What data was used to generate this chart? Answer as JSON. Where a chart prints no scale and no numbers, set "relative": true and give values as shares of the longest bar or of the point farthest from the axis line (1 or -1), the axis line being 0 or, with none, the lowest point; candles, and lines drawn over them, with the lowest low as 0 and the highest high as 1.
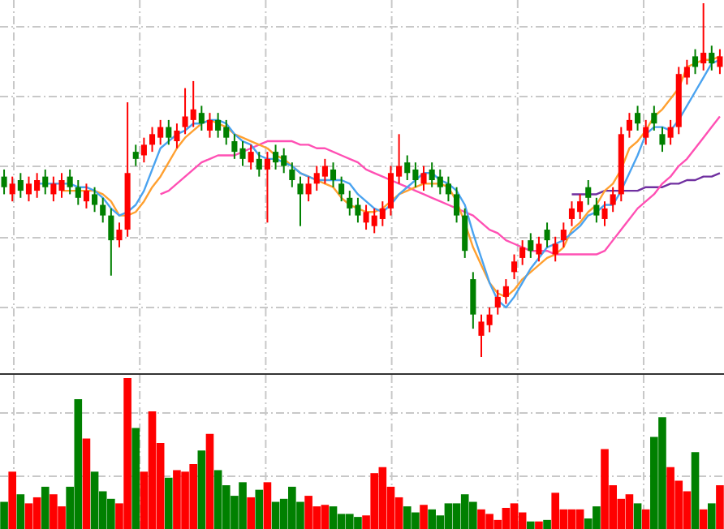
{
  "chart_data": [
    {
      "type": "candlestick",
      "relative": true,
      "grid": true,
      "categories": [
        null,
        null,
        null,
        null,
        null,
        null,
        null,
        null,
        null,
        null,
        null,
        null,
        null,
        null,
        null,
        null,
        null,
        null,
        null,
        null,
        null,
        null,
        null,
        null,
        null,
        null,
        null,
        null,
        null,
        null,
        null,
        null,
        null,
        null,
        null,
        null,
        null,
        null,
        null,
        null,
        null,
        null,
        null,
        null,
        null,
        null,
        null,
        null,
        null,
        null,
        null,
        null,
        null,
        null,
        null,
        null,
        null,
        null,
        null,
        null,
        null,
        null,
        null,
        null,
        null,
        null,
        null,
        null,
        null,
        null,
        null,
        null,
        null,
        null,
        null,
        null,
        null,
        null,
        null,
        null,
        null,
        null,
        null,
        null,
        null,
        null,
        null,
        null
      ],
      "ohlc": [
        [
          0.51,
          0.53,
          0.46,
          0.48
        ],
        [
          0.46,
          0.51,
          0.44,
          0.49
        ],
        [
          0.5,
          0.52,
          0.45,
          0.47
        ],
        [
          0.46,
          0.51,
          0.44,
          0.49
        ],
        [
          0.47,
          0.52,
          0.45,
          0.5
        ],
        [
          0.51,
          0.53,
          0.46,
          0.48
        ],
        [
          0.46,
          0.51,
          0.44,
          0.49
        ],
        [
          0.47,
          0.52,
          0.45,
          0.5
        ],
        [
          0.51,
          0.53,
          0.46,
          0.48
        ],
        [
          0.48,
          0.5,
          0.43,
          0.45
        ],
        [
          0.44,
          0.49,
          0.42,
          0.47
        ],
        [
          0.46,
          0.48,
          0.41,
          0.43
        ],
        [
          0.43,
          0.45,
          0.38,
          0.4
        ],
        [
          0.4,
          0.42,
          0.23,
          0.33
        ],
        [
          0.33,
          0.38,
          0.31,
          0.36
        ],
        [
          0.36,
          0.72,
          0.34,
          0.52
        ],
        [
          0.58,
          0.6,
          0.54,
          0.56
        ],
        [
          0.57,
          0.62,
          0.55,
          0.6
        ],
        [
          0.6,
          0.65,
          0.58,
          0.63
        ],
        [
          0.62,
          0.67,
          0.6,
          0.65
        ],
        [
          0.65,
          0.67,
          0.6,
          0.62
        ],
        [
          0.61,
          0.66,
          0.59,
          0.64
        ],
        [
          0.65,
          0.76,
          0.63,
          0.68
        ],
        [
          0.67,
          0.78,
          0.65,
          0.7
        ],
        [
          0.69,
          0.71,
          0.64,
          0.66
        ],
        [
          0.64,
          0.69,
          0.62,
          0.67
        ],
        [
          0.67,
          0.69,
          0.62,
          0.64
        ],
        [
          0.65,
          0.67,
          0.6,
          0.62
        ],
        [
          0.61,
          0.63,
          0.56,
          0.58
        ],
        [
          0.59,
          0.61,
          0.54,
          0.56
        ],
        [
          0.55,
          0.6,
          0.53,
          0.58
        ],
        [
          0.56,
          0.58,
          0.51,
          0.53
        ],
        [
          0.53,
          0.58,
          0.38,
          0.56
        ],
        [
          0.58,
          0.6,
          0.53,
          0.55
        ],
        [
          0.57,
          0.59,
          0.52,
          0.54
        ],
        [
          0.53,
          0.55,
          0.48,
          0.5
        ],
        [
          0.49,
          0.51,
          0.37,
          0.46
        ],
        [
          0.46,
          0.51,
          0.44,
          0.49
        ],
        [
          0.49,
          0.54,
          0.47,
          0.52
        ],
        [
          0.51,
          0.56,
          0.49,
          0.54
        ],
        [
          0.53,
          0.55,
          0.48,
          0.5
        ],
        [
          0.49,
          0.51,
          0.44,
          0.46
        ],
        [
          0.45,
          0.47,
          0.4,
          0.42
        ],
        [
          0.43,
          0.45,
          0.38,
          0.4
        ],
        [
          0.38,
          0.43,
          0.36,
          0.41
        ],
        [
          0.37,
          0.42,
          0.35,
          0.4
        ],
        [
          0.39,
          0.44,
          0.37,
          0.42
        ],
        [
          0.42,
          0.54,
          0.4,
          0.52
        ],
        [
          0.51,
          0.63,
          0.49,
          0.54
        ],
        [
          0.55,
          0.57,
          0.5,
          0.52
        ],
        [
          0.53,
          0.55,
          0.48,
          0.5
        ],
        [
          0.49,
          0.54,
          0.47,
          0.52
        ],
        [
          0.53,
          0.55,
          0.48,
          0.5
        ],
        [
          0.51,
          0.53,
          0.46,
          0.48
        ],
        [
          0.49,
          0.51,
          0.44,
          0.46
        ],
        [
          0.46,
          0.48,
          0.38,
          0.4
        ],
        [
          0.4,
          0.42,
          0.28,
          0.3
        ],
        [
          0.22,
          0.24,
          0.08,
          0.12
        ],
        [
          0.06,
          0.12,
          0.0,
          0.1
        ],
        [
          0.09,
          0.14,
          0.07,
          0.12
        ],
        [
          0.14,
          0.19,
          0.12,
          0.17
        ],
        [
          0.17,
          0.22,
          0.15,
          0.2
        ],
        [
          0.24,
          0.29,
          0.22,
          0.27
        ],
        [
          0.28,
          0.33,
          0.26,
          0.31
        ],
        [
          0.33,
          0.35,
          0.28,
          0.3
        ],
        [
          0.29,
          0.34,
          0.27,
          0.32
        ],
        [
          0.36,
          0.38,
          0.31,
          0.33
        ],
        [
          0.29,
          0.34,
          0.27,
          0.32
        ],
        [
          0.33,
          0.38,
          0.31,
          0.36
        ],
        [
          0.39,
          0.44,
          0.37,
          0.42
        ],
        [
          0.41,
          0.46,
          0.39,
          0.44
        ],
        [
          0.48,
          0.5,
          0.43,
          0.45
        ],
        [
          0.43,
          0.45,
          0.38,
          0.4
        ],
        [
          0.39,
          0.44,
          0.37,
          0.42
        ],
        [
          0.43,
          0.48,
          0.41,
          0.46
        ],
        [
          0.46,
          0.65,
          0.44,
          0.63
        ],
        [
          0.64,
          0.69,
          0.62,
          0.67
        ],
        [
          0.69,
          0.71,
          0.64,
          0.66
        ],
        [
          0.62,
          0.67,
          0.6,
          0.65
        ],
        [
          0.69,
          0.71,
          0.64,
          0.66
        ],
        [
          0.63,
          0.65,
          0.58,
          0.6
        ],
        [
          0.62,
          0.67,
          0.6,
          0.65
        ],
        [
          0.65,
          0.82,
          0.63,
          0.8
        ],
        [
          0.79,
          0.84,
          0.77,
          0.82
        ],
        [
          0.85,
          0.87,
          0.8,
          0.82
        ],
        [
          0.83,
          1.0,
          0.81,
          0.86
        ],
        [
          0.86,
          0.88,
          0.81,
          0.83
        ],
        [
          0.82,
          0.87,
          0.8,
          0.85
        ]
      ],
      "colors": [
        "#008000",
        "#ff0000",
        "#008000",
        "#ff0000",
        "#ff0000",
        "#008000",
        "#ff0000",
        "#ff0000",
        "#008000",
        "#008000",
        "#ff0000",
        "#008000",
        "#008000",
        "#008000",
        "#ff0000",
        "#ff0000",
        "#008000",
        "#ff0000",
        "#ff0000",
        "#ff0000",
        "#008000",
        "#ff0000",
        "#ff0000",
        "#ff0000",
        "#008000",
        "#ff0000",
        "#008000",
        "#008000",
        "#008000",
        "#008000",
        "#ff0000",
        "#008000",
        "#ff0000",
        "#008000",
        "#008000",
        "#008000",
        "#008000",
        "#ff0000",
        "#ff0000",
        "#ff0000",
        "#008000",
        "#008000",
        "#008000",
        "#008000",
        "#ff0000",
        "#ff0000",
        "#ff0000",
        "#ff0000",
        "#ff0000",
        "#008000",
        "#008000",
        "#ff0000",
        "#008000",
        "#008000",
        "#008000",
        "#008000",
        "#008000",
        "#008000",
        "#ff0000",
        "#ff0000",
        "#ff0000",
        "#ff0000",
        "#ff0000",
        "#ff0000",
        "#008000",
        "#ff0000",
        "#008000",
        "#ff0000",
        "#ff0000",
        "#ff0000",
        "#ff0000",
        "#008000",
        "#008000",
        "#ff0000",
        "#ff0000",
        "#ff0000",
        "#ff0000",
        "#008000",
        "#ff0000",
        "#008000",
        "#008000",
        "#ff0000",
        "#ff0000",
        "#ff0000",
        "#008000",
        "#ff0000",
        "#008000",
        "#ff0000"
      ],
      "series": [
        {
          "type": "line",
          "color": "#4aa3f0",
          "values": [
            null,
            null,
            null,
            null,
            0.49,
            0.49,
            0.49,
            0.49,
            0.49,
            0.48,
            0.48,
            0.47,
            0.45,
            0.42,
            0.4,
            0.41,
            0.43,
            0.47,
            0.53,
            0.59,
            0.61,
            0.63,
            0.64,
            0.66,
            0.66,
            0.67,
            0.67,
            0.66,
            0.63,
            0.61,
            0.6,
            0.57,
            0.56,
            0.56,
            0.55,
            0.54,
            0.52,
            0.51,
            0.5,
            0.5,
            0.5,
            0.5,
            0.49,
            0.46,
            0.44,
            0.42,
            0.41,
            0.43,
            0.46,
            0.48,
            0.5,
            0.52,
            0.52,
            0.5,
            0.49,
            0.47,
            0.43,
            0.35,
            0.28,
            0.21,
            0.16,
            0.14,
            0.17,
            0.21,
            0.25,
            0.28,
            0.31,
            0.32,
            0.33,
            0.35,
            0.37,
            0.4,
            0.41,
            0.43,
            0.43,
            0.47,
            0.52,
            0.57,
            0.63,
            0.65,
            0.65,
            0.64,
            0.67,
            0.71,
            0.75,
            0.79,
            0.83,
            0.84
          ]
        },
        {
          "type": "line",
          "color": "#ffa030",
          "values": [
            null,
            null,
            null,
            null,
            null,
            null,
            null,
            0.47,
            0.47,
            0.47,
            0.47,
            0.47,
            0.46,
            0.44,
            0.4,
            0.4,
            0.41,
            0.44,
            0.48,
            0.51,
            0.55,
            0.59,
            0.62,
            0.64,
            0.66,
            0.67,
            0.66,
            0.65,
            0.63,
            0.62,
            0.61,
            0.6,
            0.59,
            0.57,
            0.56,
            0.54,
            0.52,
            0.51,
            0.5,
            0.49,
            0.48,
            0.45,
            0.43,
            0.42,
            0.41,
            0.41,
            0.42,
            0.44,
            0.46,
            0.47,
            0.48,
            0.49,
            0.49,
            0.49,
            0.48,
            0.44,
            0.38,
            0.31,
            0.26,
            0.21,
            0.18,
            0.17,
            0.19,
            0.22,
            0.24,
            0.26,
            0.28,
            0.29,
            0.31,
            0.36,
            0.38,
            0.41,
            0.43,
            0.47,
            0.49,
            0.53,
            0.59,
            0.61,
            0.64,
            0.68,
            0.7,
            0.73,
            0.76,
            0.82,
            0.83,
            0.84,
            0.84,
            0.85
          ]
        },
        {
          "type": "line",
          "color": "#ff50b4",
          "values": [
            null,
            null,
            null,
            null,
            null,
            null,
            null,
            null,
            null,
            null,
            null,
            null,
            null,
            null,
            null,
            null,
            null,
            null,
            null,
            0.46,
            0.47,
            0.49,
            0.51,
            0.53,
            0.55,
            0.56,
            0.57,
            0.57,
            0.57,
            0.58,
            0.59,
            0.6,
            0.61,
            0.61,
            0.61,
            0.61,
            0.6,
            0.6,
            0.59,
            0.59,
            0.58,
            0.57,
            0.56,
            0.55,
            0.53,
            0.52,
            0.51,
            0.5,
            0.49,
            0.48,
            0.47,
            0.46,
            0.45,
            0.44,
            0.43,
            0.42,
            0.41,
            0.4,
            0.38,
            0.36,
            0.35,
            0.33,
            0.32,
            0.31,
            0.3,
            0.3,
            0.3,
            0.29,
            0.29,
            0.29,
            0.29,
            0.29,
            0.29,
            0.3,
            0.33,
            0.36,
            0.39,
            0.42,
            0.44,
            0.46,
            0.49,
            0.51,
            0.54,
            0.56,
            0.59,
            0.62,
            0.65,
            0.68
          ]
        },
        {
          "type": "line",
          "color": "#7030a0",
          "values": [
            null,
            null,
            null,
            null,
            null,
            null,
            null,
            null,
            null,
            null,
            null,
            null,
            null,
            null,
            null,
            null,
            null,
            null,
            null,
            null,
            null,
            null,
            null,
            null,
            null,
            null,
            null,
            null,
            null,
            null,
            null,
            null,
            null,
            null,
            null,
            null,
            null,
            null,
            null,
            null,
            null,
            null,
            null,
            null,
            null,
            null,
            null,
            null,
            null,
            null,
            null,
            null,
            null,
            null,
            null,
            null,
            null,
            null,
            null,
            null,
            null,
            null,
            null,
            null,
            null,
            null,
            null,
            null,
            null,
            0.46,
            0.46,
            0.46,
            0.46,
            0.47,
            0.47,
            0.47,
            0.47,
            0.47,
            0.48,
            0.48,
            0.48,
            0.49,
            0.49,
            0.5,
            0.5,
            0.51,
            0.51,
            0.52
          ]
        }
      ]
    },
    {
      "type": "bar",
      "relative": true,
      "grid": true,
      "categories": [
        null,
        null,
        null,
        null,
        null,
        null,
        null,
        null,
        null,
        null,
        null,
        null,
        null,
        null,
        null,
        null,
        null,
        null,
        null,
        null,
        null,
        null,
        null,
        null,
        null,
        null,
        null,
        null,
        null,
        null,
        null,
        null,
        null,
        null,
        null,
        null,
        null,
        null,
        null,
        null,
        null,
        null,
        null,
        null,
        null,
        null,
        null,
        null,
        null,
        null,
        null,
        null,
        null,
        null,
        null,
        null,
        null,
        null,
        null,
        null,
        null,
        null,
        null,
        null,
        null,
        null,
        null,
        null,
        null,
        null,
        null,
        null,
        null,
        null,
        null,
        null,
        null,
        null,
        null,
        null,
        null,
        null,
        null,
        null,
        null,
        null,
        null,
        null
      ],
      "values": [
        0.18,
        0.38,
        0.23,
        0.17,
        0.21,
        0.28,
        0.23,
        0.15,
        0.28,
        0.86,
        0.6,
        0.38,
        0.25,
        0.2,
        0.17,
        1.0,
        0.67,
        0.38,
        0.78,
        0.57,
        0.34,
        0.39,
        0.38,
        0.43,
        0.52,
        0.63,
        0.39,
        0.29,
        0.22,
        0.31,
        0.21,
        0.26,
        0.31,
        0.18,
        0.2,
        0.28,
        0.18,
        0.22,
        0.15,
        0.16,
        0.15,
        0.1,
        0.1,
        0.08,
        0.09,
        0.37,
        0.41,
        0.28,
        0.21,
        0.15,
        0.11,
        0.16,
        0.13,
        0.09,
        0.17,
        0.17,
        0.23,
        0.18,
        0.13,
        0.1,
        0.06,
        0.14,
        0.17,
        0.11,
        0.05,
        0.05,
        0.06,
        0.24,
        0.13,
        0.13,
        0.13,
        0.07,
        0.15,
        0.53,
        0.29,
        0.2,
        0.23,
        0.17,
        0.13,
        0.61,
        0.74,
        0.41,
        0.32,
        0.25,
        0.51,
        0.13,
        0.17,
        0.29
      ],
      "colors": [
        "#008000",
        "#ff0000",
        "#008000",
        "#ff0000",
        "#ff0000",
        "#008000",
        "#ff0000",
        "#ff0000",
        "#008000",
        "#008000",
        "#ff0000",
        "#008000",
        "#008000",
        "#008000",
        "#ff0000",
        "#ff0000",
        "#008000",
        "#ff0000",
        "#ff0000",
        "#ff0000",
        "#008000",
        "#ff0000",
        "#ff0000",
        "#ff0000",
        "#008000",
        "#ff0000",
        "#008000",
        "#008000",
        "#008000",
        "#008000",
        "#ff0000",
        "#008000",
        "#ff0000",
        "#008000",
        "#008000",
        "#008000",
        "#008000",
        "#ff0000",
        "#ff0000",
        "#ff0000",
        "#008000",
        "#008000",
        "#008000",
        "#008000",
        "#ff0000",
        "#ff0000",
        "#ff0000",
        "#ff0000",
        "#ff0000",
        "#008000",
        "#008000",
        "#ff0000",
        "#008000",
        "#008000",
        "#008000",
        "#008000",
        "#008000",
        "#008000",
        "#ff0000",
        "#ff0000",
        "#ff0000",
        "#ff0000",
        "#ff0000",
        "#ff0000",
        "#008000",
        "#ff0000",
        "#008000",
        "#ff0000",
        "#ff0000",
        "#ff0000",
        "#ff0000",
        "#008000",
        "#008000",
        "#ff0000",
        "#ff0000",
        "#ff0000",
        "#ff0000",
        "#008000",
        "#ff0000",
        "#008000",
        "#008000",
        "#ff0000",
        "#ff0000",
        "#ff0000",
        "#008000",
        "#ff0000",
        "#008000",
        "#ff0000"
      ]
    }
  ]
}
